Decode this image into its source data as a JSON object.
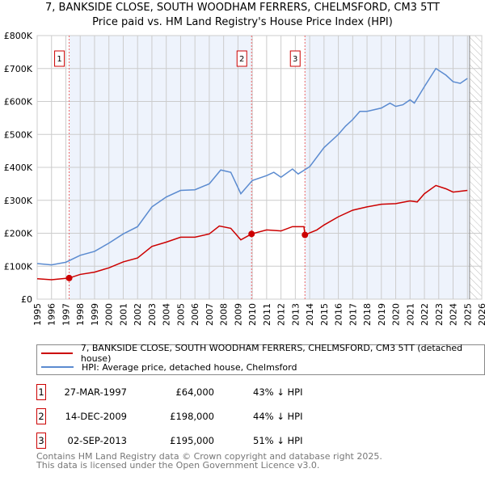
{
  "title": "7, BANKSIDE CLOSE, SOUTH WOODHAM FERRERS, CHELMSFORD, CM3 5TT",
  "subtitle": "Price paid vs. HM Land Registry's House Price Index (HPI)",
  "chart_data": {
    "type": "line",
    "xlim": [
      1995,
      2026
    ],
    "ylim": [
      0,
      800000
    ],
    "yticks": [
      {
        "v": 0,
        "label": "£0"
      },
      {
        "v": 100000,
        "label": "£100K"
      },
      {
        "v": 200000,
        "label": "£200K"
      },
      {
        "v": 300000,
        "label": "£300K"
      },
      {
        "v": 400000,
        "label": "£400K"
      },
      {
        "v": 500000,
        "label": "£500K"
      },
      {
        "v": 600000,
        "label": "£600K"
      },
      {
        "v": 700000,
        "label": "£700K"
      },
      {
        "v": 800000,
        "label": "£800K"
      }
    ],
    "xticks": [
      "1995",
      "1996",
      "1997",
      "1998",
      "1999",
      "2000",
      "2001",
      "2002",
      "2003",
      "2004",
      "2005",
      "2006",
      "2007",
      "2008",
      "2009",
      "2010",
      "2011",
      "2012",
      "2013",
      "2014",
      "2015",
      "2016",
      "2017",
      "2018",
      "2019",
      "2020",
      "2021",
      "2022",
      "2023",
      "2024",
      "2025",
      "2026"
    ],
    "grid": true,
    "series": [
      {
        "name": "7, BANKSIDE CLOSE, SOUTH WOODHAM FERRERS, CHELMSFORD, CM3 5TT (detached house)",
        "color": "#cc0000",
        "x": [
          1995,
          1996,
          1997.23,
          1998,
          1999,
          2000,
          2001,
          2002,
          2003,
          2004,
          2005,
          2006,
          2007,
          2007.7,
          2008.5,
          2009.2,
          2009.95,
          2011,
          2012,
          2012.8,
          2013.6,
          2013.67,
          2014.5,
          2015,
          2016,
          2017,
          2018,
          2019,
          2020,
          2021,
          2021.5,
          2022,
          2022.8,
          2023.5,
          2024,
          2025
        ],
        "y": [
          62000,
          59000,
          64000,
          75000,
          82000,
          95000,
          113000,
          125000,
          160000,
          173000,
          188000,
          188000,
          198000,
          222000,
          215000,
          180000,
          198000,
          210000,
          207000,
          220000,
          220000,
          195000,
          210000,
          225000,
          250000,
          270000,
          280000,
          288000,
          290000,
          298000,
          295000,
          320000,
          345000,
          335000,
          325000,
          330000
        ]
      },
      {
        "name": "HPI: Average price, detached house, Chelmsford",
        "color": "#5b8bd0",
        "x": [
          1995,
          1996,
          1997,
          1998,
          1999,
          2000,
          2001,
          2002,
          2003,
          2004,
          2005,
          2006,
          2007,
          2007.8,
          2008.5,
          2009.2,
          2010,
          2011,
          2011.5,
          2012,
          2012.8,
          2013.2,
          2014,
          2015,
          2016,
          2016.5,
          2017,
          2017.5,
          2018,
          2019,
          2019.6,
          2020,
          2020.5,
          2021,
          2021.3,
          2022,
          2022.8,
          2023.5,
          2024,
          2024.5,
          2025
        ],
        "y": [
          108000,
          104000,
          112000,
          133000,
          145000,
          170000,
          198000,
          220000,
          280000,
          310000,
          330000,
          332000,
          350000,
          392000,
          385000,
          320000,
          360000,
          375000,
          385000,
          370000,
          395000,
          380000,
          402000,
          460000,
          500000,
          525000,
          545000,
          570000,
          570000,
          580000,
          595000,
          585000,
          590000,
          605000,
          595000,
          645000,
          700000,
          680000,
          660000,
          655000,
          670000
        ]
      }
    ],
    "sales": [
      {
        "n": "1",
        "x": 1997.23,
        "y": 64000,
        "date": "27-MAR-1997",
        "price": "£64,000",
        "hpi": "43% ↓ HPI"
      },
      {
        "n": "2",
        "x": 2009.95,
        "y": 198000,
        "date": "14-DEC-2009",
        "price": "£198,000",
        "hpi": "44% ↓ HPI"
      },
      {
        "n": "3",
        "x": 2013.67,
        "y": 195000,
        "date": "02-SEP-2013",
        "price": "£195,000",
        "hpi": "51% ↓ HPI"
      }
    ],
    "forecast_from": 2025.15
  },
  "legend": {
    "red": "7, BANKSIDE CLOSE, SOUTH WOODHAM FERRERS, CHELMSFORD, CM3 5TT (detached house)",
    "blue": "HPI: Average price, detached house, Chelmsford"
  },
  "footer": [
    "Contains HM Land Registry data © Crown copyright and database right 2025.",
    "This data is licensed under the Open Government Licence v3.0."
  ]
}
